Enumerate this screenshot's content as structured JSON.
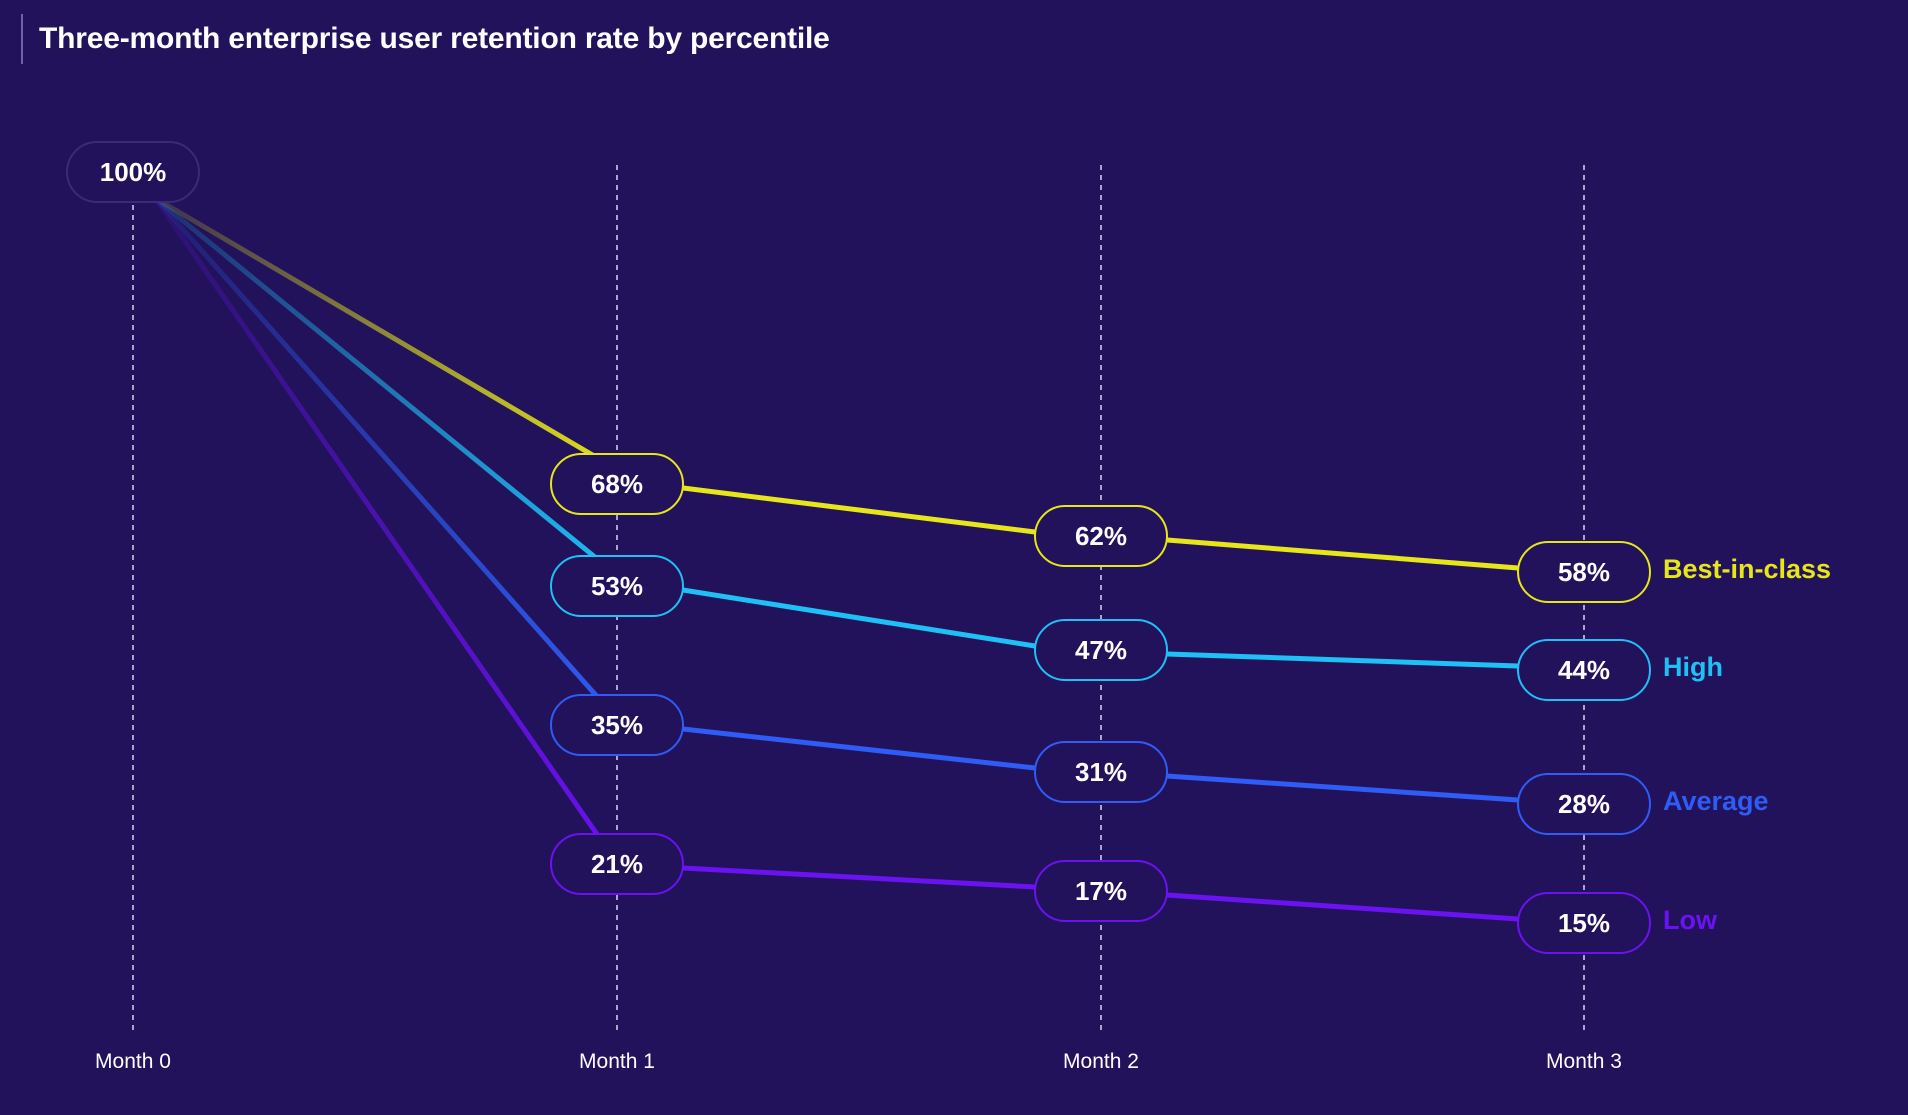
{
  "chart_data": {
    "type": "line",
    "title": "Three-month enterprise user retention rate by percentile",
    "categories": [
      "Month 0",
      "Month 1",
      "Month 2",
      "Month 3"
    ],
    "unit": "%",
    "ylim": [
      0,
      100
    ],
    "grid": "vertical-dashed",
    "legend": "right-end-labels",
    "start_label": "100%",
    "series": [
      {
        "name": "Best-in-class",
        "values": [
          100,
          68,
          62,
          58
        ],
        "labels": [
          "100%",
          "68%",
          "62%",
          "58%"
        ],
        "color": "#e6e619"
      },
      {
        "name": "High",
        "values": [
          100,
          53,
          47,
          44
        ],
        "labels": [
          "100%",
          "53%",
          "47%",
          "44%"
        ],
        "color": "#1ec0f5"
      },
      {
        "name": "Average",
        "values": [
          100,
          35,
          31,
          28
        ],
        "labels": [
          "100%",
          "35%",
          "31%",
          "28%"
        ],
        "color": "#2f5cf4"
      },
      {
        "name": "Low",
        "values": [
          100,
          21,
          17,
          15
        ],
        "labels": [
          "100%",
          "21%",
          "17%",
          "15%"
        ],
        "color": "#6a12f0"
      }
    ]
  }
}
